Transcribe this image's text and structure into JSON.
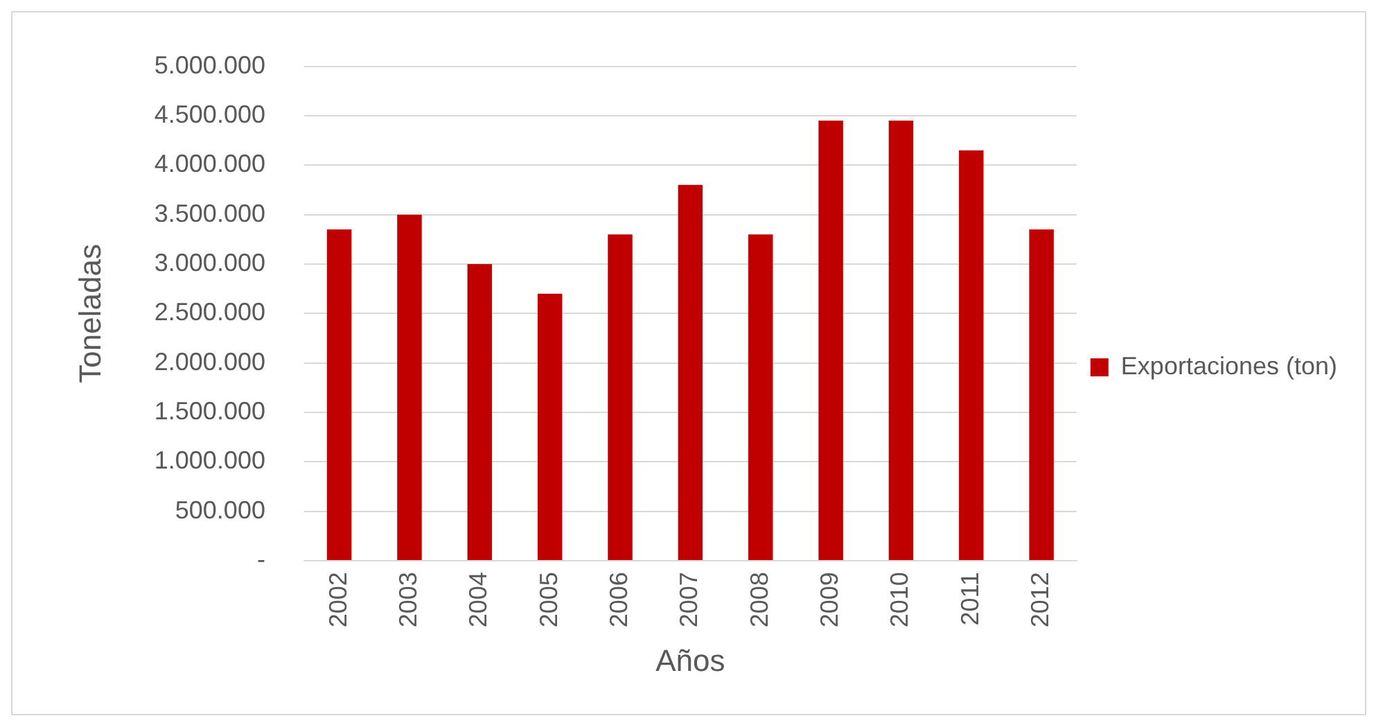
{
  "chart_data": {
    "type": "bar",
    "xlabel": "Años",
    "ylabel": "Toneladas",
    "categories": [
      "2002",
      "2003",
      "2004",
      "2005",
      "2006",
      "2007",
      "2008",
      "2009",
      "2010",
      "2011",
      "2012"
    ],
    "series": [
      {
        "name": "Exportaciones (ton)",
        "color": "#c00000",
        "values": [
          3350000,
          3500000,
          3000000,
          2700000,
          3300000,
          3800000,
          3300000,
          4450000,
          4450000,
          4150000,
          3350000
        ]
      }
    ],
    "ylim": [
      0,
      5000000
    ],
    "yticks": [
      {
        "value": 0,
        "label": "-"
      },
      {
        "value": 500000,
        "label": "500.000"
      },
      {
        "value": 1000000,
        "label": "1.000.000"
      },
      {
        "value": 1500000,
        "label": "1.500.000"
      },
      {
        "value": 2000000,
        "label": "2.000.000"
      },
      {
        "value": 2500000,
        "label": "2.500.000"
      },
      {
        "value": 3000000,
        "label": "3.000.000"
      },
      {
        "value": 3500000,
        "label": "3.500.000"
      },
      {
        "value": 4000000,
        "label": "4.000.000"
      },
      {
        "value": 4500000,
        "label": "4.500.000"
      },
      {
        "value": 5000000,
        "label": "5.000.000"
      }
    ],
    "grid": "y",
    "legend": "right"
  }
}
